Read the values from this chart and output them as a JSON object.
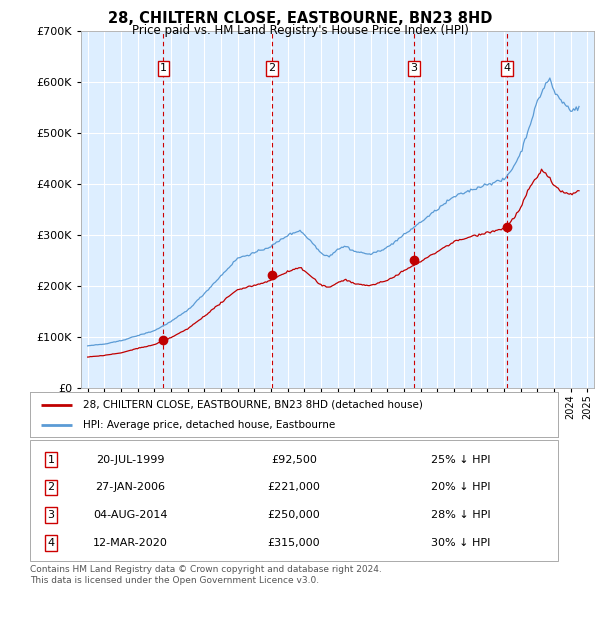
{
  "title": "28, CHILTERN CLOSE, EASTBOURNE, BN23 8HD",
  "subtitle": "Price paid vs. HM Land Registry's House Price Index (HPI)",
  "bg_color": "#ddeeff",
  "hpi_color": "#5b9bd5",
  "price_color": "#c00000",
  "marker_color": "#c00000",
  "vline_color": "#cc0000",
  "ylim": [
    0,
    700000
  ],
  "yticks": [
    0,
    100000,
    200000,
    300000,
    400000,
    500000,
    600000,
    700000
  ],
  "xlim_start": 1994.6,
  "xlim_end": 2025.4,
  "transactions": [
    {
      "num": 1,
      "date": "20-JUL-1999",
      "year": 1999.55,
      "price": 92500,
      "pct": "25%",
      "dir": "↓"
    },
    {
      "num": 2,
      "date": "27-JAN-2006",
      "year": 2006.07,
      "price": 221000,
      "pct": "20%",
      "dir": "↓"
    },
    {
      "num": 3,
      "date": "04-AUG-2014",
      "year": 2014.59,
      "price": 250000,
      "pct": "28%",
      "dir": "↓"
    },
    {
      "num": 4,
      "date": "12-MAR-2020",
      "year": 2020.19,
      "price": 315000,
      "pct": "30%",
      "dir": "↓"
    }
  ],
  "legend_line1": "28, CHILTERN CLOSE, EASTBOURNE, BN23 8HD (detached house)",
  "legend_line2": "HPI: Average price, detached house, Eastbourne",
  "footer": "Contains HM Land Registry data © Crown copyright and database right 2024.\nThis data is licensed under the Open Government Licence v3.0."
}
